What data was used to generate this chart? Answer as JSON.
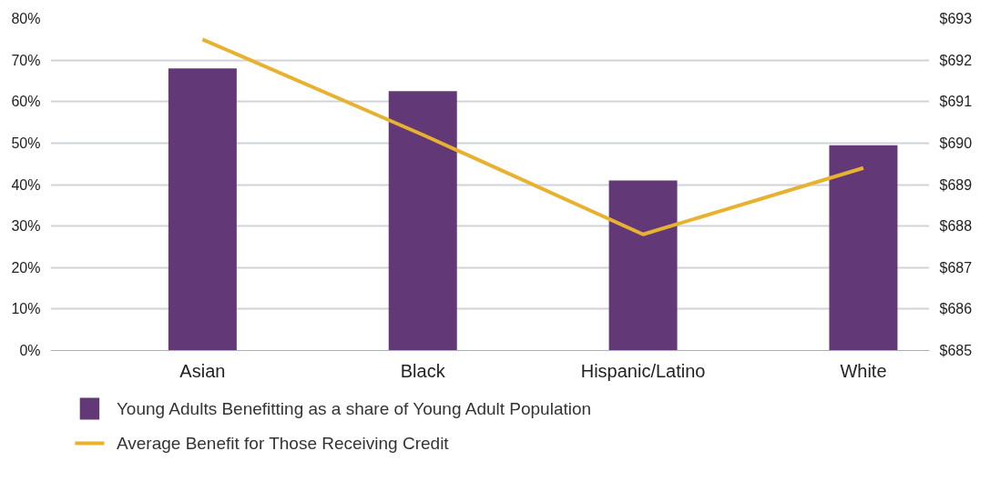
{
  "chart_data": {
    "type": "bar",
    "categories": [
      "Asian",
      "Black",
      "Hispanic/Latino",
      "White"
    ],
    "series": [
      {
        "name": "Young Adults Benefitting as a share of Young Adult Population",
        "type": "bar",
        "color": "#623877",
        "values": [
          68,
          62.5,
          41,
          49.5
        ]
      },
      {
        "name": "Average Benefit for Those Receiving Credit",
        "type": "line",
        "axis": "y2",
        "color": "#e8b231",
        "values": [
          692.5,
          690.2,
          687.8,
          689.4
        ]
      }
    ],
    "ylim": [
      0,
      80
    ],
    "yticks": [
      {
        "value": 0,
        "label": "0%"
      },
      {
        "value": 10,
        "label": "10%"
      },
      {
        "value": 20,
        "label": "20%"
      },
      {
        "value": 30,
        "label": "30%"
      },
      {
        "value": 40,
        "label": "40%"
      },
      {
        "value": 50,
        "label": "50%"
      },
      {
        "value": 60,
        "label": "60%"
      },
      {
        "value": 70,
        "label": "70%"
      },
      {
        "value": 80,
        "label": "80%"
      }
    ],
    "y2lim": [
      685,
      693
    ],
    "y2ticks": [
      {
        "value": 685,
        "label": "$685"
      },
      {
        "value": 686,
        "label": "$686"
      },
      {
        "value": 687,
        "label": "$687"
      },
      {
        "value": 688,
        "label": "$688"
      },
      {
        "value": 689,
        "label": "$689"
      },
      {
        "value": 690,
        "label": "$690"
      },
      {
        "value": 691,
        "label": "$691"
      },
      {
        "value": 692,
        "label": "$692"
      },
      {
        "value": 693,
        "label": "$693"
      }
    ],
    "grid": "y",
    "legend": "bottom",
    "marker": "none",
    "line_style": "solid"
  }
}
